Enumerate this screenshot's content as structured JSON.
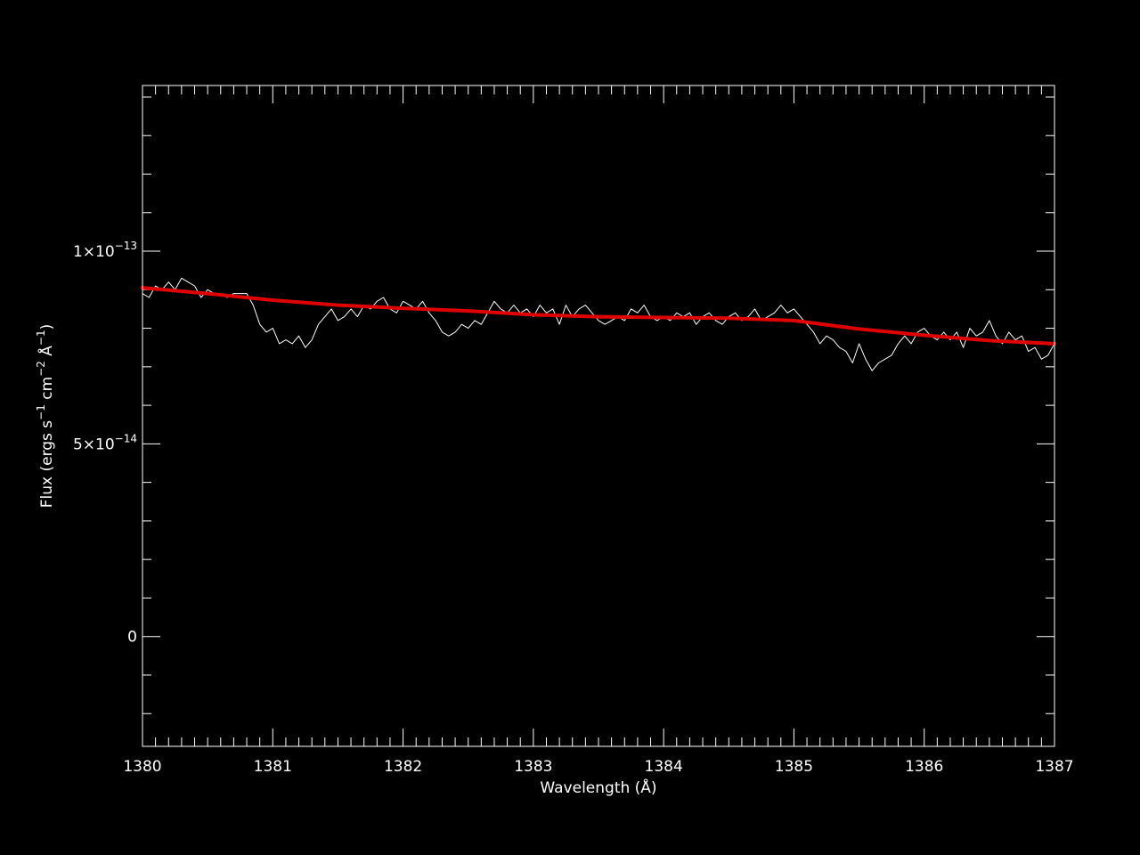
{
  "chart_data": {
    "type": "line",
    "title": "",
    "xlabel": "Wavelength (Å)",
    "ylabel": {
      "base": "Flux (ergs s",
      "e1": "−1",
      "mid1": " cm",
      "e2": "−2",
      "mid2": " Å",
      "e3": "−1",
      "end": ")"
    },
    "xlim": [
      1380,
      1387
    ],
    "ylim": [
      -2.85e-14,
      1.43e-13
    ],
    "xticks": [
      {
        "value": 1380,
        "label": "1380"
      },
      {
        "value": 1381,
        "label": "1381"
      },
      {
        "value": 1382,
        "label": "1382"
      },
      {
        "value": 1383,
        "label": "1383"
      },
      {
        "value": 1384,
        "label": "1384"
      },
      {
        "value": 1385,
        "label": "1385"
      },
      {
        "value": 1386,
        "label": "1386"
      },
      {
        "value": 1387,
        "label": "1387"
      }
    ],
    "x_minor_step": 0.1,
    "yticks": [
      {
        "value": 1e-13,
        "mantissa": "1×10",
        "exp": "−13"
      },
      {
        "value": 5e-14,
        "mantissa": "5×10",
        "exp": "−14"
      },
      {
        "value": 0,
        "mantissa": "0",
        "exp": ""
      }
    ],
    "y_minor_step": 1e-14,
    "grid": false,
    "background": "#000000",
    "axis_color": "#ffffff",
    "series": [
      {
        "color": "#ffffff",
        "x": [
          1380.0,
          1380.05,
          1380.1,
          1380.15,
          1380.2,
          1380.25,
          1380.3,
          1380.35,
          1380.4,
          1380.45,
          1380.5,
          1380.55,
          1380.6,
          1380.65,
          1380.7,
          1380.75,
          1380.8,
          1380.85,
          1380.9,
          1380.95,
          1381.0,
          1381.05,
          1381.1,
          1381.15,
          1381.2,
          1381.25,
          1381.3,
          1381.35,
          1381.4,
          1381.45,
          1381.5,
          1381.55,
          1381.6,
          1381.65,
          1381.7,
          1381.75,
          1381.8,
          1381.85,
          1381.9,
          1381.95,
          1382.0,
          1382.05,
          1382.1,
          1382.15,
          1382.2,
          1382.25,
          1382.3,
          1382.35,
          1382.4,
          1382.45,
          1382.5,
          1382.55,
          1382.6,
          1382.65,
          1382.7,
          1382.75,
          1382.8,
          1382.85,
          1382.9,
          1382.95,
          1383.0,
          1383.05,
          1383.1,
          1383.15,
          1383.2,
          1383.25,
          1383.3,
          1383.35,
          1383.4,
          1383.45,
          1383.5,
          1383.55,
          1383.6,
          1383.65,
          1383.7,
          1383.75,
          1383.8,
          1383.85,
          1383.9,
          1383.95,
          1384.0,
          1384.05,
          1384.1,
          1384.15,
          1384.2,
          1384.25,
          1384.3,
          1384.35,
          1384.4,
          1384.45,
          1384.5,
          1384.55,
          1384.6,
          1384.65,
          1384.7,
          1384.75,
          1384.8,
          1384.85,
          1384.9,
          1384.95,
          1385.0,
          1385.05,
          1385.1,
          1385.15,
          1385.2,
          1385.25,
          1385.3,
          1385.35,
          1385.4,
          1385.45,
          1385.5,
          1385.55,
          1385.6,
          1385.65,
          1385.7,
          1385.75,
          1385.8,
          1385.85,
          1385.9,
          1385.95,
          1386.0,
          1386.05,
          1386.1,
          1386.15,
          1386.2,
          1386.25,
          1386.3,
          1386.35,
          1386.4,
          1386.45,
          1386.5,
          1386.55,
          1386.6,
          1386.65,
          1386.7,
          1386.75,
          1386.8,
          1386.85,
          1386.9,
          1386.95,
          1387.0
        ],
        "y": [
          8.9e-14,
          8.8e-14,
          9.1e-14,
          9e-14,
          9.2e-14,
          9e-14,
          9.3e-14,
          9.2e-14,
          9.1e-14,
          8.8e-14,
          9e-14,
          8.9e-14,
          8.9e-14,
          8.8e-14,
          8.9e-14,
          8.9e-14,
          8.9e-14,
          8.6e-14,
          8.1e-14,
          7.9e-14,
          8e-14,
          7.6e-14,
          7.7e-14,
          7.6e-14,
          7.8e-14,
          7.5e-14,
          7.7e-14,
          8.1e-14,
          8.3e-14,
          8.5e-14,
          8.2e-14,
          8.3e-14,
          8.5e-14,
          8.3e-14,
          8.6e-14,
          8.5e-14,
          8.7e-14,
          8.8e-14,
          8.5e-14,
          8.4e-14,
          8.7e-14,
          8.6e-14,
          8.5e-14,
          8.7e-14,
          8.4e-14,
          8.2e-14,
          7.9e-14,
          7.8e-14,
          7.9e-14,
          8.1e-14,
          8e-14,
          8.2e-14,
          8.1e-14,
          8.4e-14,
          8.7e-14,
          8.5e-14,
          8.4e-14,
          8.6e-14,
          8.4e-14,
          8.5e-14,
          8.3e-14,
          8.6e-14,
          8.4e-14,
          8.5e-14,
          8.1e-14,
          8.6e-14,
          8.3e-14,
          8.5e-14,
          8.6e-14,
          8.4e-14,
          8.2e-14,
          8.1e-14,
          8.2e-14,
          8.3e-14,
          8.2e-14,
          8.5e-14,
          8.4e-14,
          8.6e-14,
          8.3e-14,
          8.2e-14,
          8.3e-14,
          8.2e-14,
          8.4e-14,
          8.3e-14,
          8.4e-14,
          8.1e-14,
          8.3e-14,
          8.4e-14,
          8.2e-14,
          8.1e-14,
          8.3e-14,
          8.4e-14,
          8.2e-14,
          8.3e-14,
          8.5e-14,
          8.2e-14,
          8.3e-14,
          8.4e-14,
          8.6e-14,
          8.4e-14,
          8.5e-14,
          8.3e-14,
          8.1e-14,
          7.9e-14,
          7.6e-14,
          7.8e-14,
          7.7e-14,
          7.5e-14,
          7.4e-14,
          7.1e-14,
          7.6e-14,
          7.2e-14,
          6.9e-14,
          7.1e-14,
          7.2e-14,
          7.3e-14,
          7.6e-14,
          7.8e-14,
          7.6e-14,
          7.9e-14,
          8e-14,
          7.8e-14,
          7.7e-14,
          7.9e-14,
          7.7e-14,
          7.9e-14,
          7.5e-14,
          8e-14,
          7.8e-14,
          7.9e-14,
          8.2e-14,
          7.8e-14,
          7.6e-14,
          7.9e-14,
          7.7e-14,
          7.8e-14,
          7.4e-14,
          7.5e-14,
          7.2e-14,
          7.3e-14,
          7.6e-14
        ]
      },
      {
        "color": "#e00000",
        "x": [
          1380.0,
          1380.5,
          1381.0,
          1381.5,
          1382.0,
          1382.5,
          1383.0,
          1383.5,
          1384.0,
          1384.5,
          1385.0,
          1385.5,
          1386.0,
          1386.5,
          1387.0
        ],
        "y": [
          9.05e-14,
          8.9e-14,
          8.73e-14,
          8.6e-14,
          8.52e-14,
          8.45e-14,
          8.35e-14,
          8.3e-14,
          8.28e-14,
          8.26e-14,
          8.2e-14,
          7.98e-14,
          7.82e-14,
          7.68e-14,
          7.6e-14
        ]
      }
    ]
  }
}
